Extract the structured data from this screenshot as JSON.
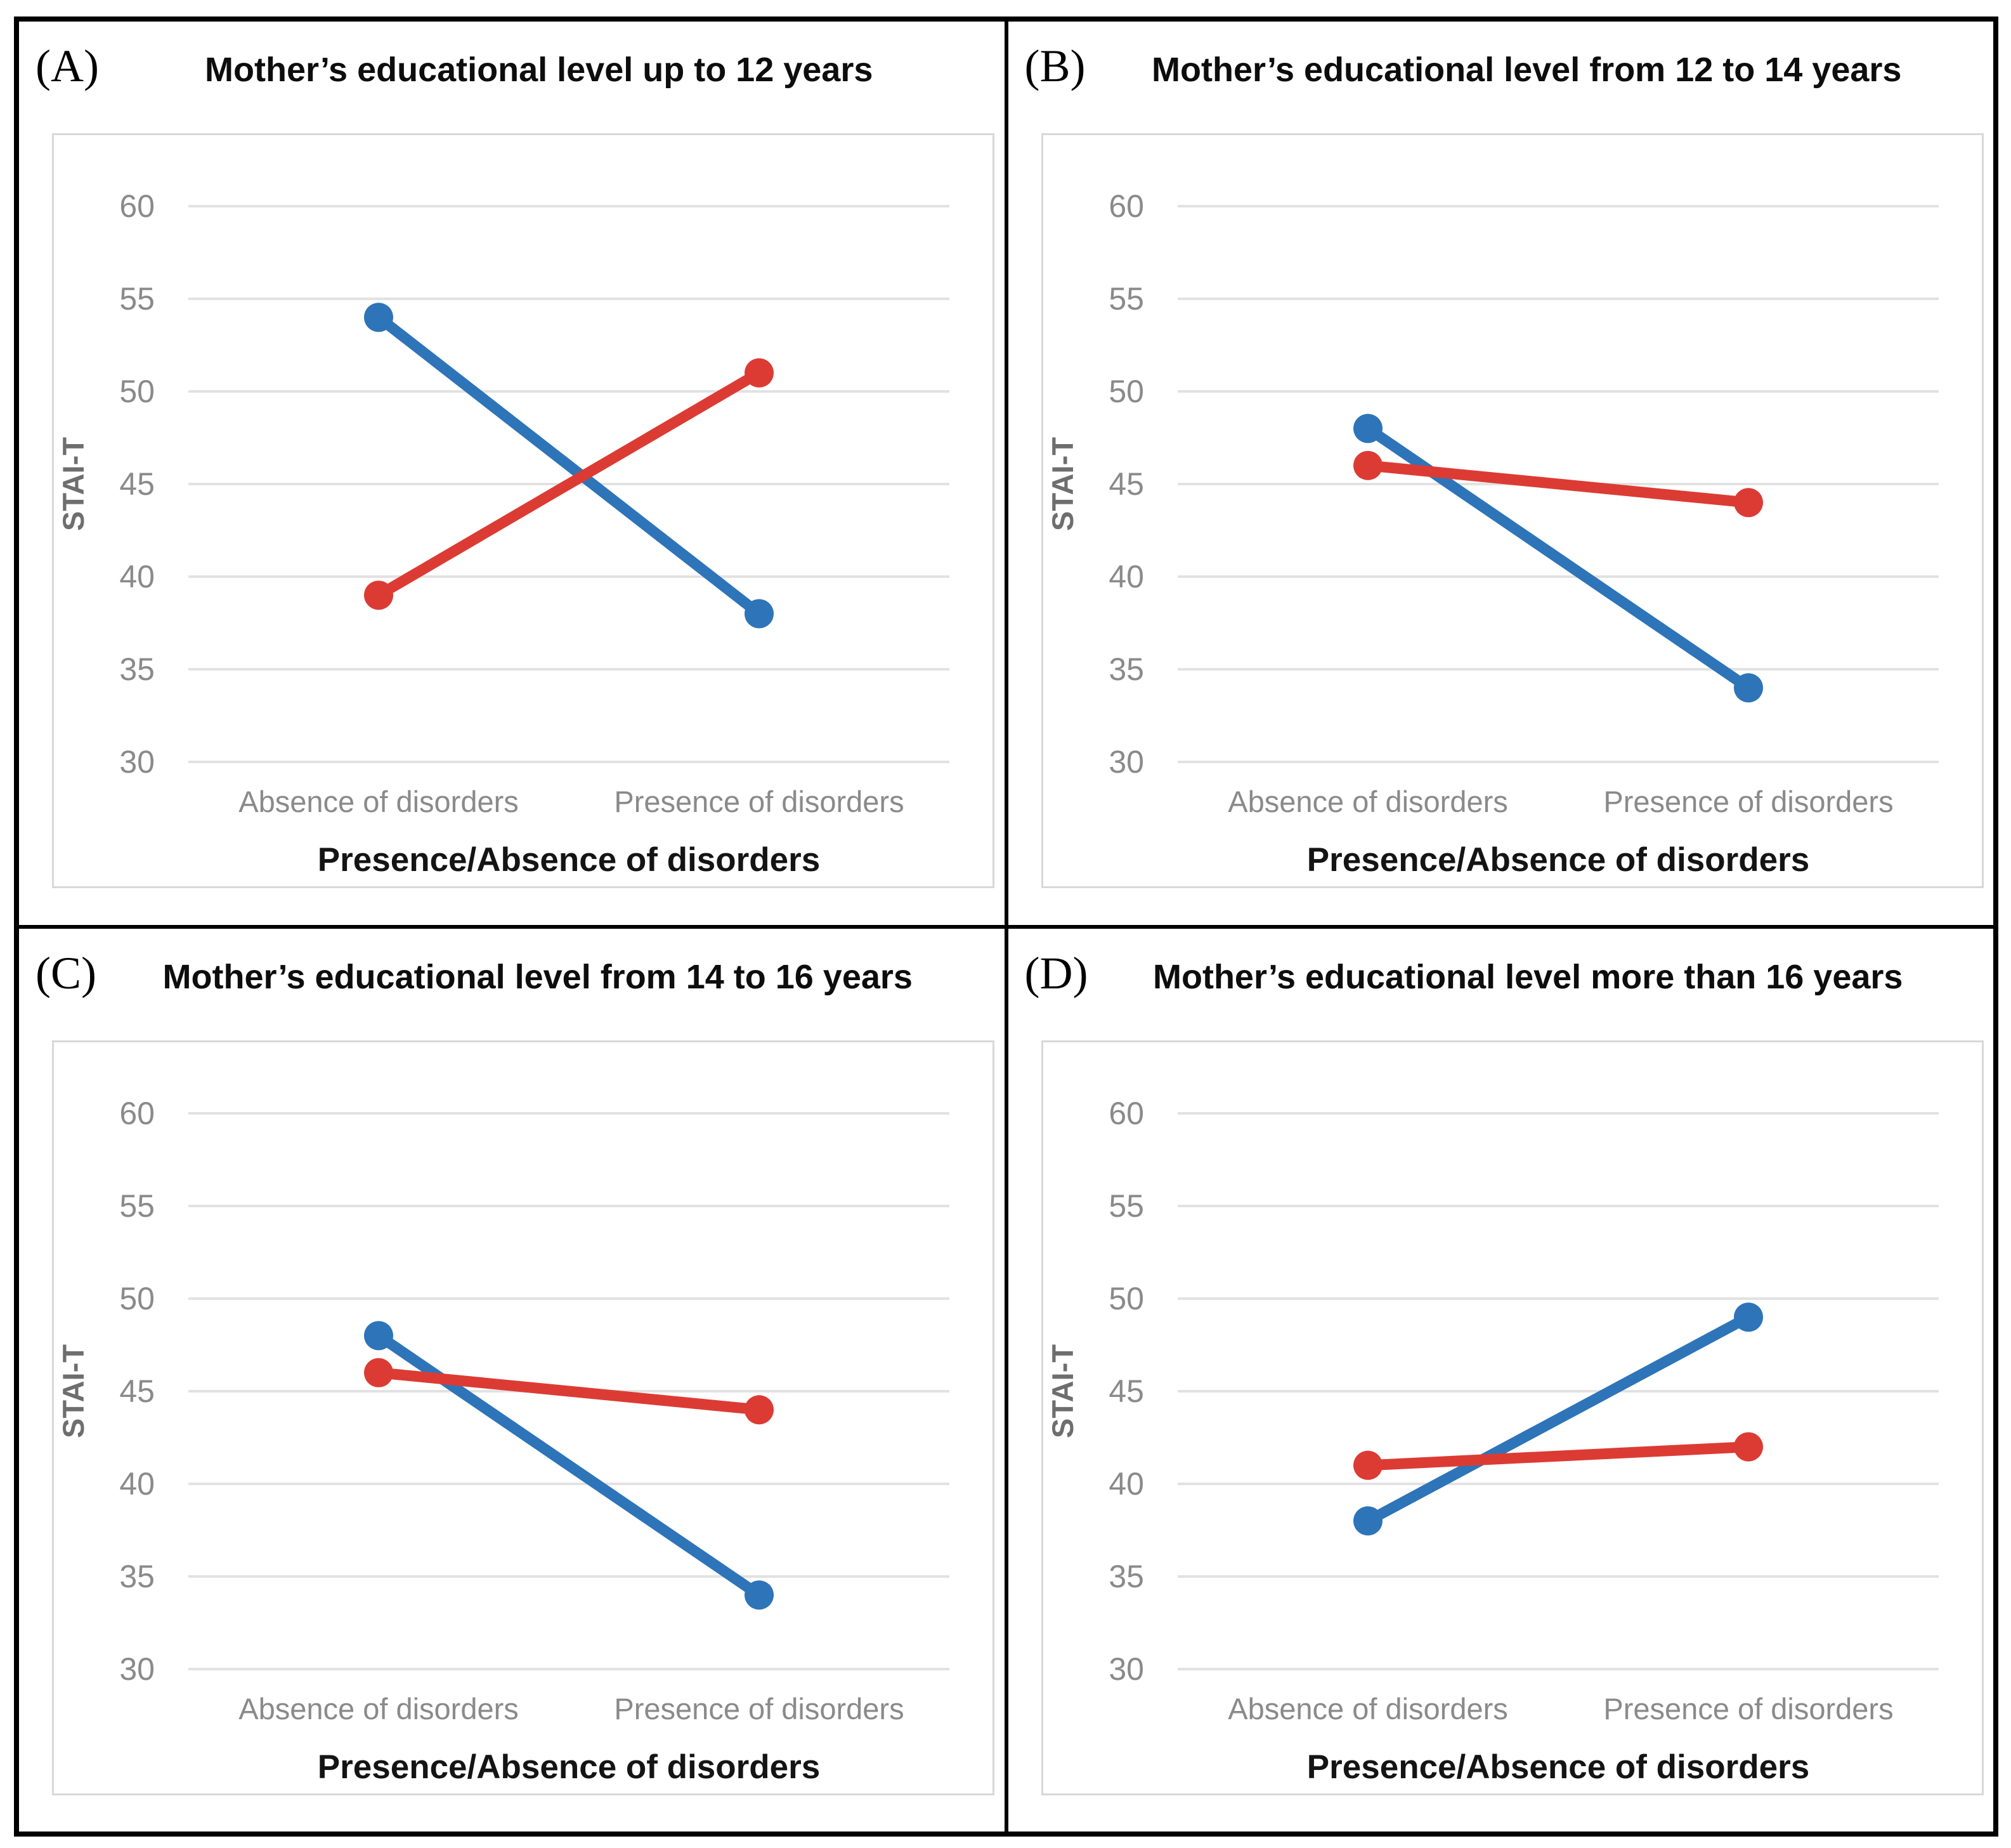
{
  "styles": {
    "grid_color": "#E2E2E2",
    "frame_color": "#D8D8D8",
    "tick_label_color": "#8A8A8A",
    "category_label_color": "#8A8A8A",
    "y_axis_title_color": "#6E6E6E",
    "x_axis_title_color": "#141414",
    "panel_border_color": "#000000"
  },
  "chart_data": [
    {
      "type": "line",
      "panel_label": "(A)",
      "title": "Mother’s educational level up to 12 years",
      "categories": [
        "Absence of disorders",
        "Presence of disorders"
      ],
      "series": [
        {
          "name": "blue",
          "color": "#2E74B8",
          "values": [
            54,
            38
          ]
        },
        {
          "name": "red",
          "color": "#DC3B34",
          "values": [
            39,
            51
          ]
        }
      ],
      "xlabel": "Presence/Absence of disorders",
      "ylabel": "STAI-T",
      "ylim": [
        30,
        60
      ],
      "yticks": [
        60,
        55,
        50,
        45,
        40,
        35,
        30
      ],
      "grid": true,
      "legend": "none"
    },
    {
      "type": "line",
      "panel_label": "(B)",
      "title": "Mother’s educational level from 12 to 14 years",
      "categories": [
        "Absence of disorders",
        "Presence of disorders"
      ],
      "series": [
        {
          "name": "blue",
          "color": "#2E74B8",
          "values": [
            48,
            34
          ]
        },
        {
          "name": "red",
          "color": "#DC3B34",
          "values": [
            46,
            44
          ]
        }
      ],
      "xlabel": "Presence/Absence of disorders",
      "ylabel": "STAI-T",
      "ylim": [
        30,
        60
      ],
      "yticks": [
        60,
        55,
        50,
        45,
        40,
        35,
        30
      ],
      "grid": true,
      "legend": "none"
    },
    {
      "type": "line",
      "panel_label": "(C)",
      "title": "Mother’s educational level from 14 to 16 years",
      "categories": [
        "Absence of disorders",
        "Presence of disorders"
      ],
      "series": [
        {
          "name": "blue",
          "color": "#2E74B8",
          "values": [
            48,
            34
          ]
        },
        {
          "name": "red",
          "color": "#DC3B34",
          "values": [
            46,
            44
          ]
        }
      ],
      "xlabel": "Presence/Absence of disorders",
      "ylabel": "STAI-T",
      "ylim": [
        30,
        60
      ],
      "yticks": [
        60,
        55,
        50,
        45,
        40,
        35,
        30
      ],
      "grid": true,
      "legend": "none"
    },
    {
      "type": "line",
      "panel_label": "(D)",
      "title": "Mother’s educational level more than 16 years",
      "categories": [
        "Absence of disorders",
        "Presence of disorders"
      ],
      "series": [
        {
          "name": "blue",
          "color": "#2E74B8",
          "values": [
            38,
            49
          ]
        },
        {
          "name": "red",
          "color": "#DC3B34",
          "values": [
            41,
            42
          ]
        }
      ],
      "xlabel": "Presence/Absence of disorders",
      "ylabel": "STAI-T",
      "ylim": [
        30,
        60
      ],
      "yticks": [
        60,
        55,
        50,
        45,
        40,
        35,
        30
      ],
      "grid": true,
      "legend": "none"
    }
  ]
}
